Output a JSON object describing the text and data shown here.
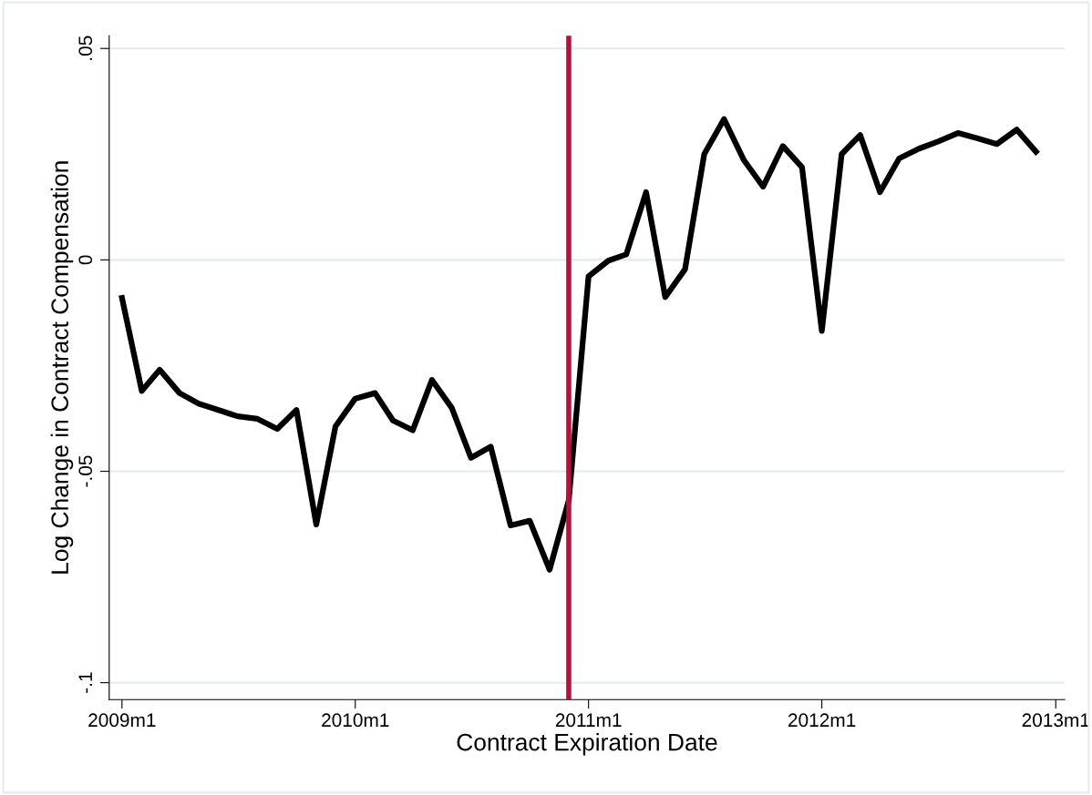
{
  "chart_data": {
    "type": "line",
    "xlabel": "Contract Expiration Date",
    "ylabel": "Log Change in Contract Compensation",
    "x": [
      "2009-01",
      "2009-02",
      "2009-03",
      "2009-04",
      "2009-05",
      "2009-06",
      "2009-07",
      "2009-08",
      "2009-09",
      "2009-10",
      "2009-11",
      "2009-12",
      "2010-01",
      "2010-02",
      "2010-03",
      "2010-04",
      "2010-05",
      "2010-06",
      "2010-07",
      "2010-08",
      "2010-09",
      "2010-10",
      "2010-11",
      "2010-12",
      "2011-01",
      "2011-02",
      "2011-03",
      "2011-04",
      "2011-05",
      "2011-06",
      "2011-07",
      "2011-08",
      "2011-09",
      "2011-10",
      "2011-11",
      "2011-12",
      "2012-01",
      "2012-02",
      "2012-03",
      "2012-04",
      "2012-05",
      "2012-06",
      "2012-07",
      "2012-08",
      "2012-09",
      "2012-10",
      "2012-11",
      "2012-12"
    ],
    "series": [
      {
        "color": "#000000",
        "values": [
          -0.009,
          -0.031,
          -0.026,
          -0.0315,
          -0.034,
          -0.0355,
          -0.037,
          -0.0376,
          -0.04,
          -0.0355,
          -0.0626,
          -0.0394,
          -0.0328,
          -0.0315,
          -0.038,
          -0.0403,
          -0.0284,
          -0.035,
          -0.0468,
          -0.0442,
          -0.0628,
          -0.0617,
          -0.0733,
          -0.0569,
          -0.0039,
          -0.0002,
          0.0013,
          0.016,
          -0.0088,
          -0.0022,
          0.025,
          0.0333,
          0.0236,
          0.0173,
          0.0269,
          0.0219,
          -0.0168,
          0.025,
          0.0295,
          0.016,
          0.024,
          0.0263,
          0.028,
          0.03,
          0.0287,
          0.0274,
          0.0308,
          0.0256
        ]
      }
    ],
    "xlim": [
      "2008-12-12",
      "2013-01-15"
    ],
    "xticks": [
      {
        "value": "2009-01",
        "label": "2009m1"
      },
      {
        "value": "2010-01",
        "label": "2010m1"
      },
      {
        "value": "2011-01",
        "label": "2011m1"
      },
      {
        "value": "2012-01",
        "label": "2012m1"
      },
      {
        "value": "2013-01",
        "label": "2013m1"
      }
    ],
    "ylim": [
      -0.104,
      0.053
    ],
    "yticks": [
      {
        "value": -0.1,
        "label": "-.1"
      },
      {
        "value": -0.05,
        "label": "-.05"
      },
      {
        "value": 0,
        "label": "0"
      },
      {
        "value": 0.05,
        "label": ".05"
      }
    ],
    "ref_lines": [
      {
        "axis": "x",
        "value": "2010-12",
        "color": "#b3123a"
      }
    ],
    "grid": "y",
    "legend": false,
    "marker": "none",
    "line_style": "solid"
  }
}
